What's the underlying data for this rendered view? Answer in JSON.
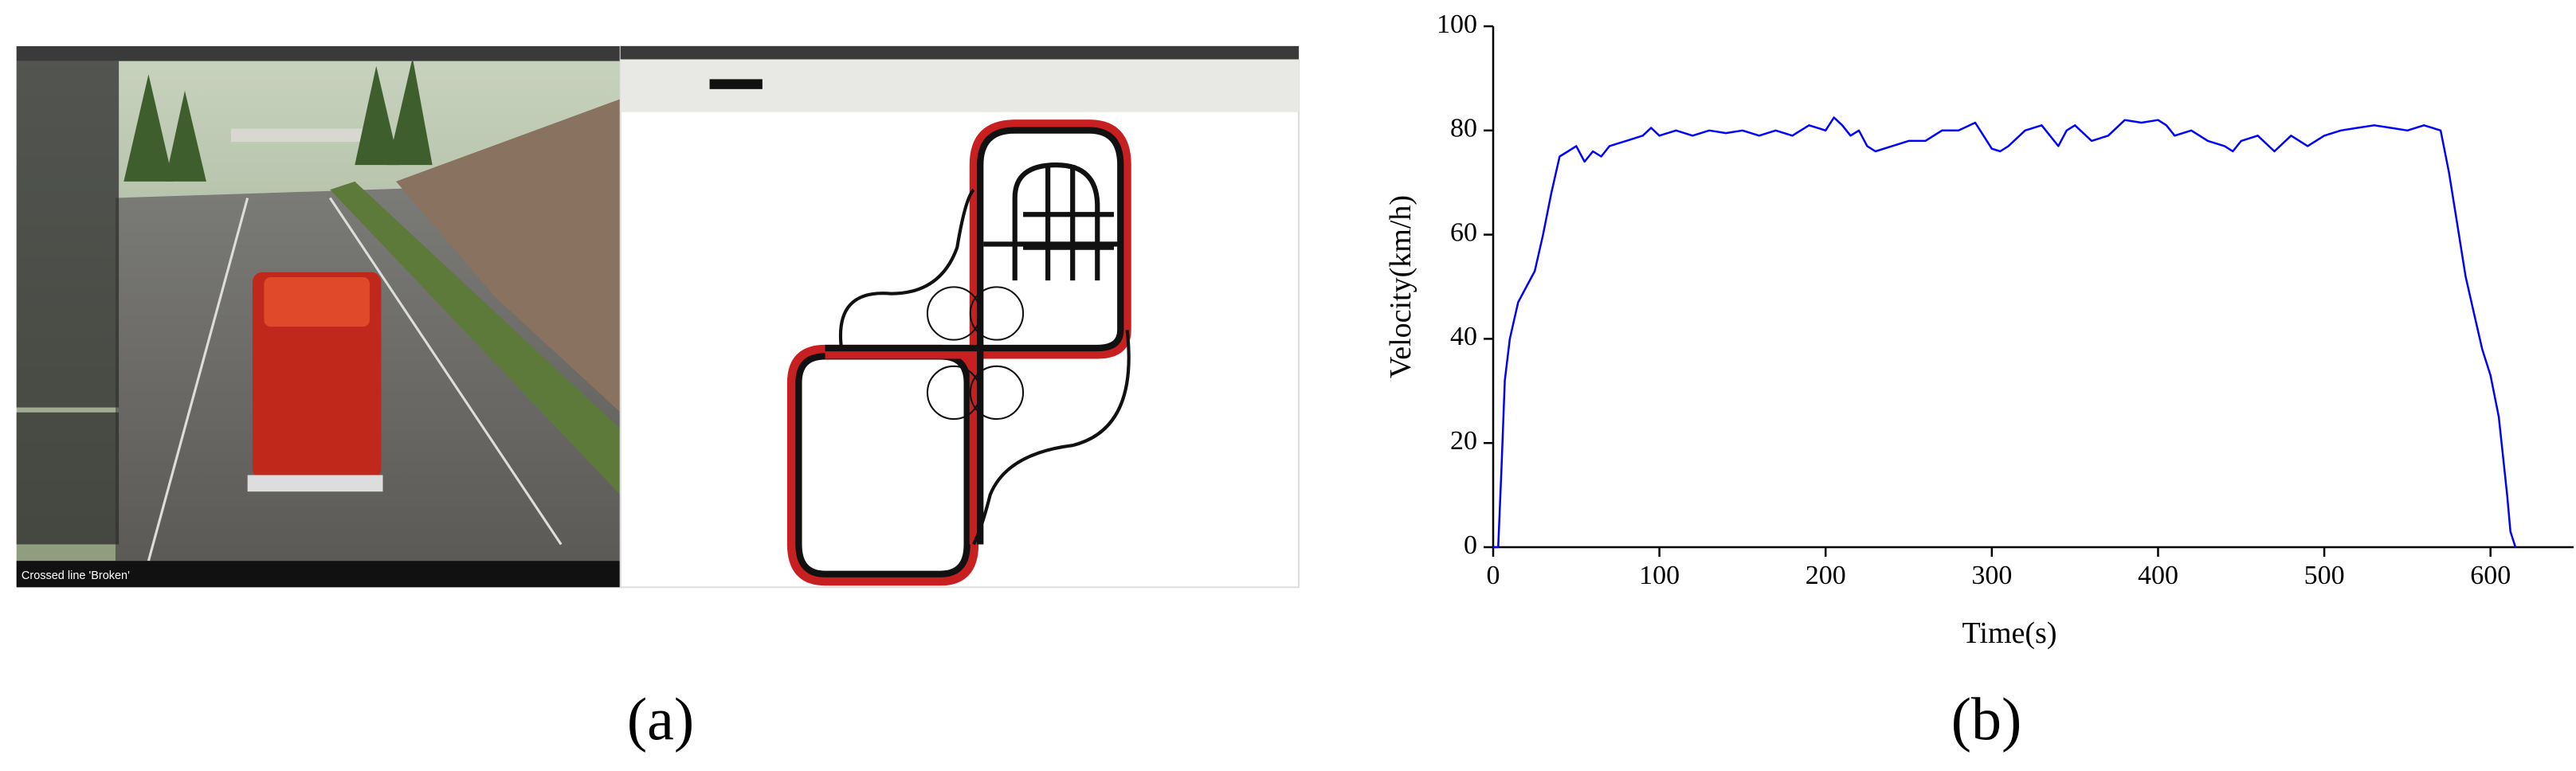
{
  "panel_labels": {
    "a": "(a)",
    "b": "(b)"
  },
  "simulator_status": "Crossed line 'Broken'",
  "chart_data": {
    "type": "line",
    "color": "#0000ff",
    "y_label": "Velocity(km/h)",
    "x_label": "Time(s)",
    "x": [
      0,
      3,
      5,
      7,
      10,
      15,
      20,
      25,
      30,
      35,
      40,
      45,
      50,
      55,
      60,
      65,
      70,
      80,
      90,
      95,
      100,
      110,
      120,
      130,
      140,
      150,
      160,
      170,
      180,
      190,
      200,
      205,
      210,
      215,
      220,
      225,
      230,
      240,
      250,
      260,
      270,
      280,
      290,
      295,
      300,
      305,
      310,
      320,
      330,
      340,
      345,
      350,
      360,
      370,
      380,
      390,
      400,
      405,
      410,
      420,
      430,
      440,
      445,
      450,
      460,
      470,
      480,
      490,
      500,
      510,
      520,
      530,
      540,
      550,
      560,
      570,
      575,
      580,
      585,
      590,
      595,
      600,
      605,
      610,
      612,
      615
    ],
    "values": [
      0,
      0,
      15,
      32,
      40,
      47,
      50,
      53,
      60,
      68,
      75,
      76,
      77,
      74,
      76,
      75,
      77,
      78,
      79,
      80.5,
      79,
      80,
      79,
      80,
      79.5,
      80,
      79,
      80,
      79,
      81,
      80,
      82.5,
      81,
      79,
      80,
      77,
      76,
      77,
      78,
      78,
      80,
      80,
      81.5,
      79,
      76.5,
      76,
      77,
      80,
      81,
      77,
      80,
      81,
      78,
      79,
      82,
      81.5,
      82,
      81,
      79,
      80,
      78,
      77,
      76,
      78,
      79,
      76,
      79,
      77,
      79,
      80,
      80.5,
      81,
      80.5,
      80,
      81,
      80,
      72,
      62,
      52,
      45,
      38,
      33,
      25,
      10,
      3,
      0
    ],
    "xlim": [
      0,
      650
    ],
    "ylim": [
      0,
      100
    ],
    "xticks": [
      0,
      100,
      200,
      300,
      400,
      500,
      600
    ],
    "yticks": [
      0,
      20,
      40,
      60,
      80,
      100
    ]
  }
}
